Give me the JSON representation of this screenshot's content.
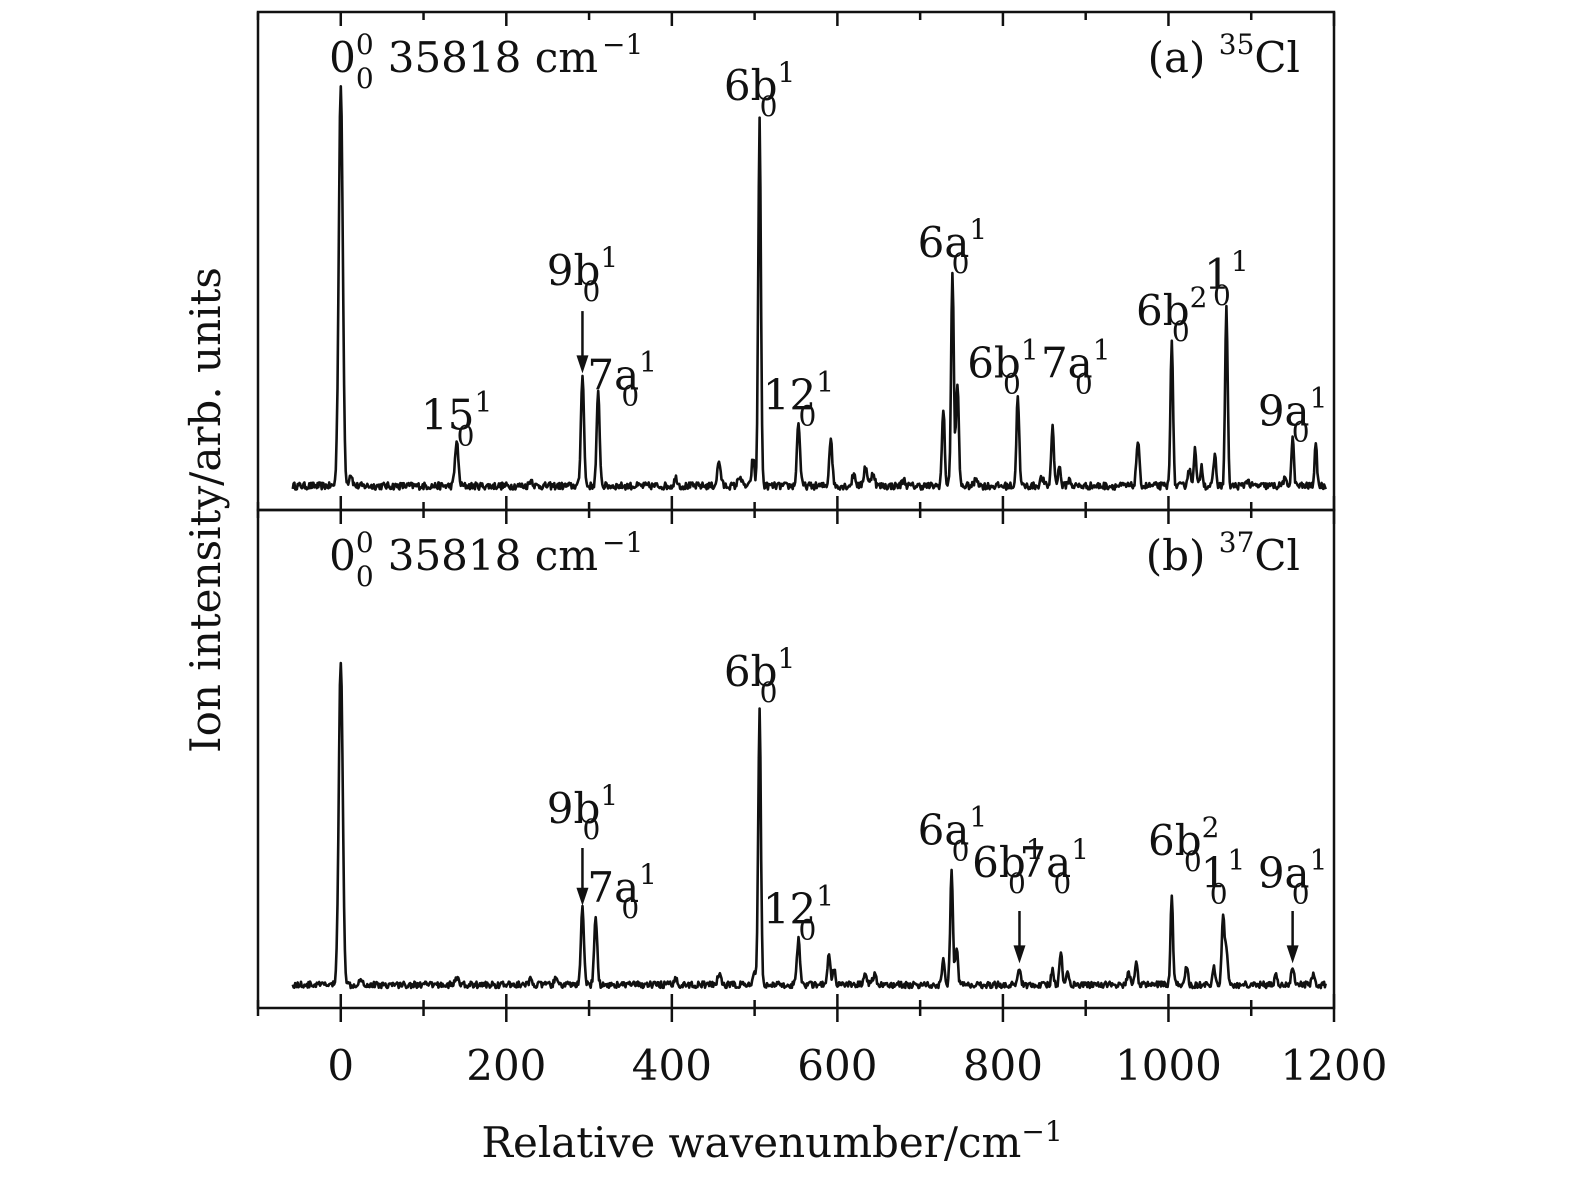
{
  "chart_data": {
    "type": "line",
    "xlabel": "Relative wavenumber/cm",
    "xlabel_exponent": "−1",
    "ylabel": "Ion intensity/arb. units",
    "xlim": [
      -100,
      1200
    ],
    "xticks": [
      0,
      200,
      400,
      600,
      800,
      1000,
      1200
    ],
    "xtick_labels": [
      "0",
      "200",
      "400",
      "600",
      "800",
      "1000",
      "1200"
    ],
    "panels": [
      {
        "id": "a",
        "tag": "(a)",
        "isotope_mass": "35",
        "isotope_element": "Cl",
        "origin_label": {
          "base": "0",
          "sup": "0",
          "sub": "0",
          "text": "35818 cm",
          "exp": "−1"
        },
        "ylim": [
          0,
          1.0
        ],
        "baseline": 0.02,
        "peaks": [
          {
            "x": 0,
            "h": 1.0,
            "w": 2.4
          },
          {
            "x": 12,
            "h": 0.03,
            "w": 2
          },
          {
            "x": 140,
            "h": 0.11,
            "w": 2
          },
          {
            "x": 230,
            "h": 0.015,
            "w": 2
          },
          {
            "x": 292,
            "h": 0.28,
            "w": 1.8
          },
          {
            "x": 311,
            "h": 0.23,
            "w": 1.8
          },
          {
            "x": 405,
            "h": 0.02,
            "w": 2
          },
          {
            "x": 457,
            "h": 0.06,
            "w": 2
          },
          {
            "x": 482,
            "h": 0.025,
            "w": 2
          },
          {
            "x": 498,
            "h": 0.07,
            "w": 1.6
          },
          {
            "x": 506,
            "h": 0.91,
            "w": 1.6
          },
          {
            "x": 553,
            "h": 0.16,
            "w": 1.8
          },
          {
            "x": 592,
            "h": 0.12,
            "w": 1.8
          },
          {
            "x": 620,
            "h": 0.03,
            "w": 2
          },
          {
            "x": 634,
            "h": 0.05,
            "w": 2
          },
          {
            "x": 643,
            "h": 0.035,
            "w": 2
          },
          {
            "x": 680,
            "h": 0.015,
            "w": 2
          },
          {
            "x": 728,
            "h": 0.19,
            "w": 1.6
          },
          {
            "x": 739,
            "h": 0.53,
            "w": 1.6
          },
          {
            "x": 745,
            "h": 0.26,
            "w": 1.6
          },
          {
            "x": 768,
            "h": 0.02,
            "w": 2
          },
          {
            "x": 818,
            "h": 0.23,
            "w": 1.6
          },
          {
            "x": 847,
            "h": 0.02,
            "w": 2
          },
          {
            "x": 860,
            "h": 0.15,
            "w": 1.6
          },
          {
            "x": 868,
            "h": 0.05,
            "w": 1.6
          },
          {
            "x": 880,
            "h": 0.015,
            "w": 2
          },
          {
            "x": 963,
            "h": 0.11,
            "w": 1.8
          },
          {
            "x": 1004,
            "h": 0.37,
            "w": 1.5
          },
          {
            "x": 1025,
            "h": 0.04,
            "w": 2
          },
          {
            "x": 1032,
            "h": 0.09,
            "w": 1.5
          },
          {
            "x": 1040,
            "h": 0.05,
            "w": 1.5
          },
          {
            "x": 1056,
            "h": 0.08,
            "w": 1.5
          },
          {
            "x": 1070,
            "h": 0.45,
            "w": 1.5
          },
          {
            "x": 1095,
            "h": 0.015,
            "w": 2
          },
          {
            "x": 1140,
            "h": 0.015,
            "w": 2
          },
          {
            "x": 1150,
            "h": 0.12,
            "w": 1.5
          },
          {
            "x": 1178,
            "h": 0.1,
            "w": 1.5
          }
        ],
        "labels": [
          {
            "base": "6b",
            "sup": "1",
            "sub": "0",
            "x": 506,
            "y": 0.98,
            "anchor": "middle"
          },
          {
            "base": "9b",
            "sup": "1",
            "sub": "0",
            "x": 292,
            "y": 0.52,
            "anchor": "middle"
          },
          {
            "base": "15",
            "sup": "1",
            "sub": "0",
            "x": 140,
            "y": 0.16,
            "anchor": "middle"
          },
          {
            "base": "7a",
            "sup": "1",
            "sub": "0",
            "x": 340,
            "y": 0.26,
            "anchor": "middle"
          },
          {
            "base": "12",
            "sup": "1",
            "sub": "0",
            "x": 553,
            "y": 0.21,
            "anchor": "middle"
          },
          {
            "base": "6a",
            "sup": "1",
            "sub": "0",
            "x": 739,
            "y": 0.59,
            "anchor": "middle"
          },
          {
            "base": "6b",
            "sup": "1",
            "sub": "0",
            "x": 800,
            "y": 0.29,
            "anchor": "middle"
          },
          {
            "base": "7a",
            "sup": "1",
            "sub": "0",
            "x": 888,
            "y": 0.29,
            "anchor": "middle"
          },
          {
            "base": "6b",
            "sup": "2",
            "sub": "0",
            "x": 1004,
            "y": 0.42,
            "anchor": "middle"
          },
          {
            "base": "1",
            "sup": "1",
            "sub": "0",
            "x": 1070,
            "y": 0.51,
            "anchor": "middle"
          },
          {
            "base": "9a",
            "sup": "1",
            "sub": "0",
            "x": 1150,
            "y": 0.17,
            "anchor": "middle"
          }
        ],
        "arrows": [
          {
            "x": 292,
            "y_from": 0.455,
            "y_to": 0.305
          }
        ]
      },
      {
        "id": "b",
        "tag": "(b)",
        "isotope_mass": "37",
        "isotope_element": "Cl",
        "origin_label": {
          "base": "0",
          "sup": "0",
          "sub": "0",
          "text": "35818 cm",
          "exp": "−1"
        },
        "ylim": [
          0,
          1.0
        ],
        "baseline": 0.02,
        "peaks": [
          {
            "x": 0,
            "h": 0.9,
            "w": 2.4
          },
          {
            "x": 24,
            "h": 0.02,
            "w": 2
          },
          {
            "x": 140,
            "h": 0.02,
            "w": 2
          },
          {
            "x": 230,
            "h": 0.015,
            "w": 2
          },
          {
            "x": 260,
            "h": 0.015,
            "w": 2
          },
          {
            "x": 292,
            "h": 0.21,
            "w": 1.8
          },
          {
            "x": 308,
            "h": 0.19,
            "w": 1.8
          },
          {
            "x": 405,
            "h": 0.015,
            "w": 2
          },
          {
            "x": 457,
            "h": 0.03,
            "w": 2
          },
          {
            "x": 500,
            "h": 0.03,
            "w": 1.6
          },
          {
            "x": 506,
            "h": 0.77,
            "w": 1.6
          },
          {
            "x": 553,
            "h": 0.13,
            "w": 1.8
          },
          {
            "x": 590,
            "h": 0.09,
            "w": 1.6
          },
          {
            "x": 596,
            "h": 0.04,
            "w": 1.6
          },
          {
            "x": 634,
            "h": 0.03,
            "w": 2
          },
          {
            "x": 645,
            "h": 0.03,
            "w": 2
          },
          {
            "x": 728,
            "h": 0.07,
            "w": 1.6
          },
          {
            "x": 738,
            "h": 0.32,
            "w": 1.6
          },
          {
            "x": 744,
            "h": 0.1,
            "w": 1.6
          },
          {
            "x": 820,
            "h": 0.05,
            "w": 1.6
          },
          {
            "x": 860,
            "h": 0.04,
            "w": 1.6
          },
          {
            "x": 870,
            "h": 0.09,
            "w": 1.6
          },
          {
            "x": 878,
            "h": 0.04,
            "w": 1.6
          },
          {
            "x": 952,
            "h": 0.03,
            "w": 2
          },
          {
            "x": 961,
            "h": 0.07,
            "w": 1.6
          },
          {
            "x": 1004,
            "h": 0.24,
            "w": 1.5
          },
          {
            "x": 1022,
            "h": 0.05,
            "w": 1.6
          },
          {
            "x": 1055,
            "h": 0.05,
            "w": 1.6
          },
          {
            "x": 1066,
            "h": 0.19,
            "w": 1.6
          },
          {
            "x": 1070,
            "h": 0.1,
            "w": 1.6
          },
          {
            "x": 1130,
            "h": 0.03,
            "w": 1.6
          },
          {
            "x": 1150,
            "h": 0.05,
            "w": 1.6
          },
          {
            "x": 1175,
            "h": 0.03,
            "w": 1.6
          }
        ],
        "labels": [
          {
            "base": "6b",
            "sup": "1",
            "sub": "0",
            "x": 506,
            "y": 0.85,
            "anchor": "middle"
          },
          {
            "base": "9b",
            "sup": "1",
            "sub": "0",
            "x": 292,
            "y": 0.47,
            "anchor": "middle"
          },
          {
            "base": "7a",
            "sup": "1",
            "sub": "0",
            "x": 340,
            "y": 0.25,
            "anchor": "middle"
          },
          {
            "base": "12",
            "sup": "1",
            "sub": "0",
            "x": 553,
            "y": 0.19,
            "anchor": "middle"
          },
          {
            "base": "6a",
            "sup": "1",
            "sub": "0",
            "x": 739,
            "y": 0.41,
            "anchor": "middle"
          },
          {
            "base": "6b",
            "sup": "1",
            "sub": "0",
            "x": 806,
            "y": 0.32,
            "anchor": "middle"
          },
          {
            "base": "7a",
            "sup": "1",
            "sub": "0",
            "x": 862,
            "y": 0.32,
            "anchor": "middle"
          },
          {
            "base": "6b",
            "sup": "2",
            "sub": "0",
            "x": 1004,
            "y": 0.38,
            "anchor": "start_offset"
          },
          {
            "base": "1",
            "sup": "1",
            "sub": "0",
            "x": 1066,
            "y": 0.29,
            "anchor": "middle"
          },
          {
            "base": "9a",
            "sup": "1",
            "sub": "0",
            "x": 1150,
            "y": 0.29,
            "anchor": "middle"
          }
        ],
        "arrows": [
          {
            "x": 292,
            "y_from": 0.4,
            "y_to": 0.245
          },
          {
            "x": 820,
            "y_from": 0.225,
            "y_to": 0.085
          },
          {
            "x": 1150,
            "y_from": 0.225,
            "y_to": 0.085
          }
        ]
      }
    ]
  }
}
